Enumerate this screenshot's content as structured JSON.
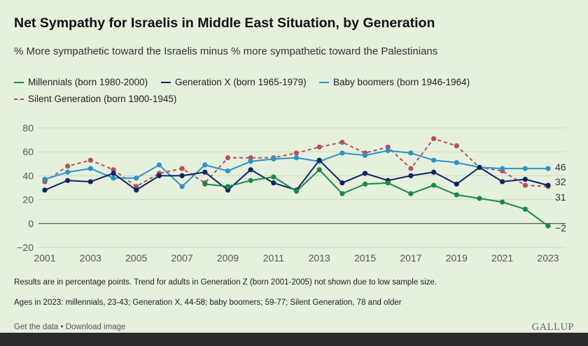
{
  "chart_data": {
    "type": "line",
    "title": "Net Sympathy for Israelis in Middle East Situation, by Generation",
    "subtitle": "% More sympathetic toward the Israelis minus % more sympathetic toward the Palestinians",
    "xlabel": "",
    "ylabel": "",
    "ylim": [
      -20,
      80
    ],
    "xlim": [
      2001,
      2023
    ],
    "yticks": [
      80,
      60,
      40,
      20,
      0,
      -20
    ],
    "ytick_labels": [
      "80",
      "60",
      "40",
      "20",
      "0",
      "−20"
    ],
    "xticks": [
      2001,
      2003,
      2005,
      2007,
      2009,
      2011,
      2013,
      2015,
      2017,
      2019,
      2021,
      2023
    ],
    "grid": true,
    "legend_position": "top-left",
    "series": [
      {
        "name": "Millennials (born 1980-2000)",
        "color": "#1a8a43",
        "style": "solid",
        "x": [
          2008,
          2009,
          2010,
          2011,
          2012,
          2013,
          2014,
          2015,
          2016,
          2017,
          2018,
          2019,
          2020,
          2021,
          2022,
          2023
        ],
        "values": [
          33,
          31,
          36,
          39,
          27,
          45,
          25,
          33,
          34,
          25,
          32,
          24,
          21,
          18,
          12,
          -2
        ],
        "end_label": "−2"
      },
      {
        "name": "Generation X (born 1965-1979)",
        "color": "#0d2462",
        "style": "solid",
        "x": [
          2001,
          2002,
          2003,
          2004,
          2005,
          2006,
          2007,
          2008,
          2009,
          2010,
          2011,
          2012,
          2013,
          2014,
          2015,
          2016,
          2017,
          2018,
          2019,
          2020,
          2021,
          2022,
          2023
        ],
        "values": [
          28,
          36,
          35,
          42,
          28,
          40,
          40,
          43,
          28,
          45,
          34,
          28,
          53,
          34,
          42,
          36,
          40,
          43,
          33,
          47,
          35,
          37,
          32
        ],
        "end_label": "32"
      },
      {
        "name": "Baby boomers (born 1946-1964)",
        "color": "#2a93c9",
        "style": "solid",
        "x": [
          2001,
          2002,
          2003,
          2004,
          2005,
          2006,
          2007,
          2008,
          2009,
          2010,
          2011,
          2012,
          2013,
          2014,
          2015,
          2016,
          2017,
          2018,
          2019,
          2020,
          2021,
          2022,
          2023
        ],
        "values": [
          37,
          43,
          46,
          38,
          38,
          49,
          31,
          49,
          44,
          52,
          54,
          55,
          52,
          59,
          57,
          61,
          59,
          53,
          51,
          47,
          46,
          46,
          46
        ],
        "end_label": "46"
      },
      {
        "name": "Silent Generation (born 1900-1945)",
        "color": "#b5505e",
        "style": "dashed",
        "x": [
          2001,
          2002,
          2003,
          2004,
          2005,
          2006,
          2007,
          2008,
          2009,
          2010,
          2011,
          2012,
          2013,
          2014,
          2015,
          2016,
          2017,
          2018,
          2019,
          2020,
          2021,
          2022,
          2023
        ],
        "values": [
          35,
          48,
          53,
          45,
          31,
          42,
          46,
          34,
          55,
          55,
          55,
          59,
          64,
          68,
          59,
          64,
          46,
          71,
          65,
          47,
          44,
          32,
          31
        ],
        "end_label": "31"
      }
    ]
  },
  "notes": {
    "line1": "Results are in percentage points. Trend for adults in Generation Z (born 2001-2005) not shown due to low sample size.",
    "line2": "Ages in 2023: millennials, 23-43; Generation X, 44-58; baby boomers; 59-77; Silent Generation, 78 and older"
  },
  "footer": {
    "get_data": "Get the data",
    "separator": " • ",
    "download": "Download image",
    "brand": "GALLUP"
  }
}
